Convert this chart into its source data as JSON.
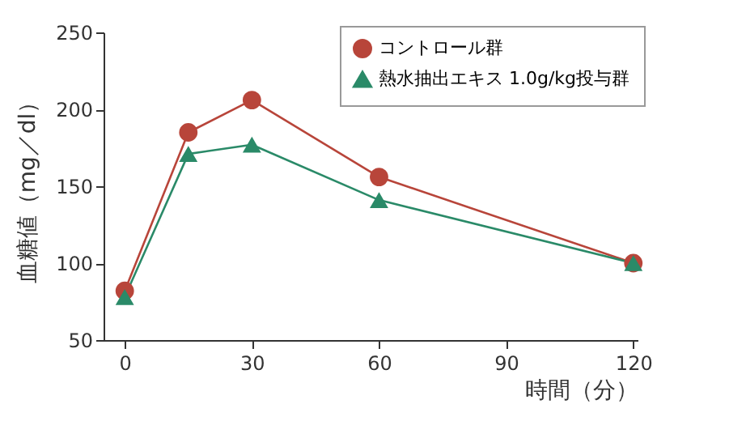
{
  "chart_data": {
    "type": "line",
    "xlabel": "時間（分）",
    "ylabel": "血糖値（mg／dl）",
    "x": [
      0,
      15,
      30,
      60,
      120
    ],
    "series": [
      {
        "name": "コントロール群",
        "color": "#b8453a",
        "marker": "circle",
        "values": [
          82,
          185,
          206,
          156,
          100
        ]
      },
      {
        "name": "熱水抽出エキス 1.0g/kg投与群",
        "color": "#2a8a68",
        "marker": "triangle",
        "values": [
          78,
          171,
          177,
          141,
          100
        ]
      }
    ],
    "xlim": [
      -5,
      121
    ],
    "xticks": [
      0,
      30,
      60,
      90,
      120
    ],
    "ylim": [
      50,
      250
    ],
    "yticks": [
      50,
      100,
      150,
      200,
      250
    ],
    "legend": "top right",
    "grid": false
  }
}
